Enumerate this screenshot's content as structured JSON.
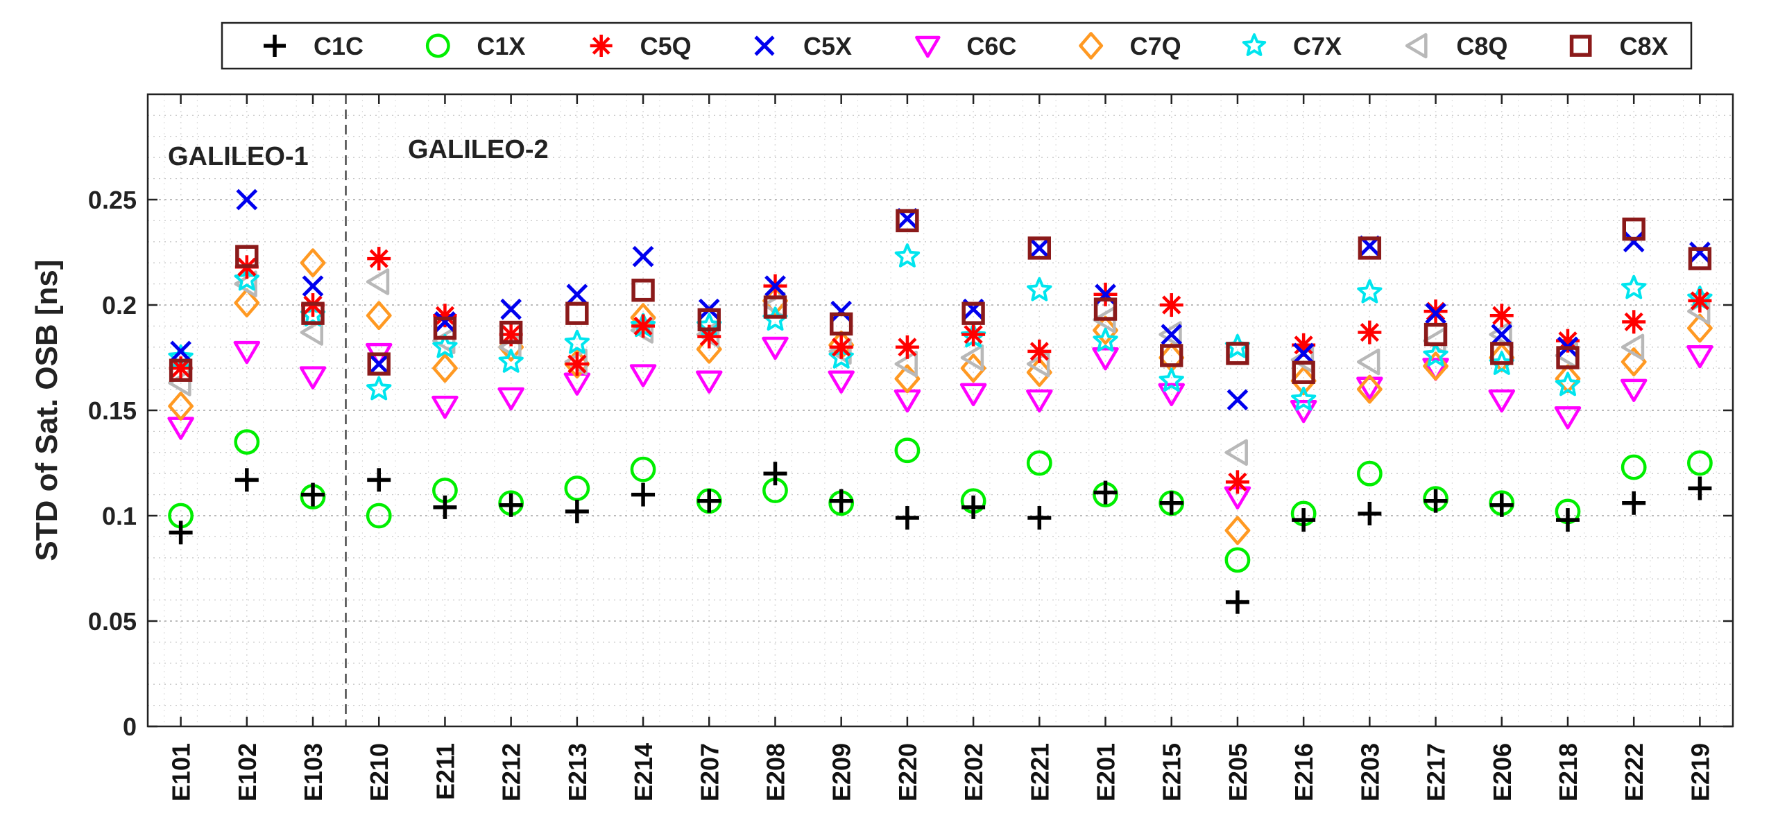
{
  "chart_data": {
    "type": "scatter",
    "title": "",
    "xlabel": "",
    "ylabel": "STD of Sat. OSB [ns]",
    "ylim": [
      0,
      0.3
    ],
    "yticks": [
      0,
      0.05,
      0.1,
      0.15,
      0.2,
      0.25
    ],
    "ytick_labels": [
      "0",
      "0.05",
      "0.1",
      "0.15",
      "0.2",
      "0.25"
    ],
    "grid": true,
    "legend_position": "top-outside",
    "categories": [
      "E101",
      "E102",
      "E103",
      "E210",
      "E211",
      "E212",
      "E213",
      "E214",
      "E207",
      "E208",
      "E209",
      "E220",
      "E202",
      "E221",
      "E201",
      "E215",
      "E205",
      "E216",
      "E203",
      "E217",
      "E206",
      "E218",
      "E222",
      "E219"
    ],
    "group_labels": [
      {
        "text": "GALILEO-1",
        "start_index": 0
      },
      {
        "text": "GALILEO-2",
        "start_index": 3
      }
    ],
    "group_divider_after_index": 2,
    "series": [
      {
        "name": "C1C",
        "marker": "plus",
        "color": "#000000",
        "values": [
          0.092,
          0.117,
          0.11,
          0.117,
          0.104,
          0.105,
          0.102,
          0.11,
          0.107,
          0.12,
          0.107,
          0.099,
          0.104,
          0.099,
          0.111,
          0.106,
          0.059,
          0.098,
          0.101,
          0.107,
          0.105,
          0.098,
          0.106,
          0.113
        ]
      },
      {
        "name": "C1X",
        "marker": "circle",
        "color": "#00ee00",
        "values": [
          0.1,
          0.135,
          0.109,
          0.1,
          0.112,
          0.106,
          0.113,
          0.122,
          0.107,
          0.112,
          0.106,
          0.131,
          0.107,
          0.125,
          0.11,
          0.106,
          0.079,
          0.101,
          0.12,
          0.108,
          0.106,
          0.102,
          0.123,
          0.125
        ]
      },
      {
        "name": "C5Q",
        "marker": "asterisk",
        "color": "#ff0000",
        "values": [
          0.17,
          0.218,
          0.2,
          0.222,
          0.195,
          0.186,
          0.172,
          0.19,
          0.185,
          0.209,
          0.18,
          0.18,
          0.186,
          0.178,
          0.205,
          0.2,
          0.116,
          0.181,
          0.187,
          0.197,
          0.195,
          0.183,
          0.192,
          0.202
        ]
      },
      {
        "name": "C5X",
        "marker": "x",
        "color": "#0000ee",
        "values": [
          0.178,
          0.25,
          0.209,
          0.172,
          0.192,
          0.198,
          0.205,
          0.223,
          0.198,
          0.209,
          0.197,
          0.241,
          0.198,
          0.227,
          0.205,
          0.186,
          0.155,
          0.177,
          0.228,
          0.196,
          0.186,
          0.18,
          0.23,
          0.225
        ]
      },
      {
        "name": "C6C",
        "marker": "triangle-down",
        "color": "#ff00ff",
        "values": [
          0.142,
          0.178,
          0.166,
          0.177,
          0.152,
          0.156,
          0.163,
          0.167,
          0.164,
          0.18,
          0.164,
          0.155,
          0.158,
          0.155,
          0.175,
          0.158,
          0.109,
          0.15,
          0.161,
          0.17,
          0.155,
          0.147,
          0.16,
          0.176
        ]
      },
      {
        "name": "C7Q",
        "marker": "diamond",
        "color": "#ff9922",
        "values": [
          0.152,
          0.201,
          0.22,
          0.195,
          0.17,
          0.18,
          0.172,
          0.194,
          0.179,
          0.202,
          0.181,
          0.165,
          0.17,
          0.168,
          0.188,
          0.175,
          0.093,
          0.164,
          0.16,
          0.171,
          0.175,
          0.165,
          0.173,
          0.189
        ]
      },
      {
        "name": "C7X",
        "marker": "star",
        "color": "#00e5ee",
        "values": [
          0.175,
          0.212,
          0.195,
          0.16,
          0.18,
          0.173,
          0.182,
          0.19,
          0.19,
          0.193,
          0.175,
          0.223,
          0.185,
          0.207,
          0.183,
          0.164,
          0.18,
          0.155,
          0.206,
          0.176,
          0.172,
          0.162,
          0.208,
          0.203
        ]
      },
      {
        "name": "C8Q",
        "marker": "triangle-left",
        "color": "#b8b8b8",
        "values": [
          0.163,
          0.21,
          0.187,
          0.211,
          0.183,
          0.18,
          0.173,
          0.188,
          0.186,
          0.2,
          0.178,
          0.172,
          0.175,
          0.172,
          0.193,
          0.186,
          0.13,
          0.174,
          0.173,
          0.183,
          0.186,
          0.176,
          0.18,
          0.197
        ]
      },
      {
        "name": "C8X",
        "marker": "square",
        "color": "#8b1a1a",
        "values": [
          0.169,
          0.223,
          0.196,
          0.172,
          0.189,
          0.187,
          0.196,
          0.207,
          0.193,
          0.199,
          0.191,
          0.24,
          0.196,
          0.227,
          0.198,
          0.176,
          0.177,
          0.168,
          0.227,
          0.186,
          0.177,
          0.175,
          0.236,
          0.222
        ]
      }
    ]
  }
}
